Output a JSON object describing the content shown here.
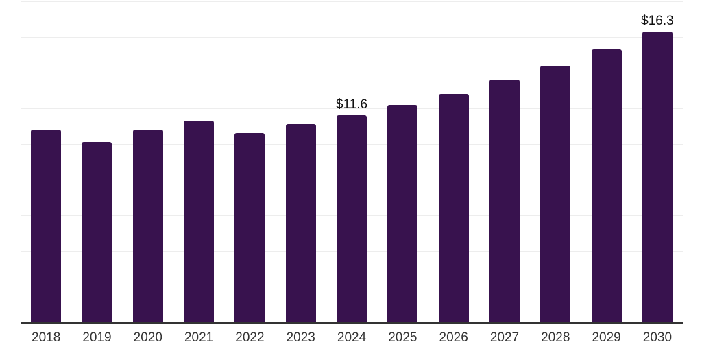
{
  "chart_data": {
    "type": "bar",
    "title": "",
    "xlabel": "",
    "ylabel": "",
    "categories": [
      "2018",
      "2019",
      "2020",
      "2021",
      "2022",
      "2023",
      "2024",
      "2025",
      "2026",
      "2027",
      "2028",
      "2029",
      "2030"
    ],
    "values": [
      10.8,
      10.1,
      10.8,
      11.3,
      10.6,
      11.1,
      11.6,
      12.2,
      12.8,
      13.6,
      14.4,
      15.3,
      16.3
    ],
    "value_labels": {
      "2024": "$11.6",
      "2030": "$16.3"
    },
    "ylim": [
      0,
      18
    ],
    "y_gridline_step": 2,
    "y_tick_labels_shown": false,
    "grid": "horizontal",
    "legend_position": "none",
    "colors": {
      "bar": "#38124E",
      "gridline": "#EDEDED",
      "axis_line": "#333333",
      "x_tick_label": "#333333",
      "value_label": "#111111",
      "background": "#FFFFFF"
    }
  }
}
